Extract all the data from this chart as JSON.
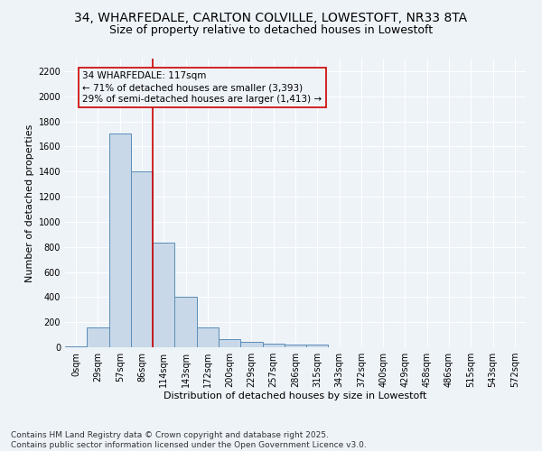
{
  "title_line1": "34, WHARFEDALE, CARLTON COLVILLE, LOWESTOFT, NR33 8TA",
  "title_line2": "Size of property relative to detached houses in Lowestoft",
  "xlabel": "Distribution of detached houses by size in Lowestoft",
  "ylabel": "Number of detached properties",
  "bar_color": "#c8d8e8",
  "bar_edge_color": "#5b8db8",
  "categories": [
    "0sqm",
    "29sqm",
    "57sqm",
    "86sqm",
    "114sqm",
    "143sqm",
    "172sqm",
    "200sqm",
    "229sqm",
    "257sqm",
    "286sqm",
    "315sqm",
    "343sqm",
    "372sqm",
    "400sqm",
    "429sqm",
    "458sqm",
    "486sqm",
    "515sqm",
    "543sqm",
    "572sqm"
  ],
  "values": [
    10,
    155,
    1700,
    1400,
    835,
    400,
    160,
    65,
    40,
    30,
    25,
    25,
    0,
    0,
    0,
    0,
    0,
    0,
    0,
    0,
    0
  ],
  "ylim": [
    0,
    2300
  ],
  "yticks": [
    0,
    200,
    400,
    600,
    800,
    1000,
    1200,
    1400,
    1600,
    1800,
    2000,
    2200
  ],
  "vline_color": "#cc0000",
  "vline_x_index": 3.5,
  "annotation_text": "34 WHARFEDALE: 117sqm\n← 71% of detached houses are smaller (3,393)\n29% of semi-detached houses are larger (1,413) →",
  "annotation_box_color": "#cc0000",
  "footer_line1": "Contains HM Land Registry data © Crown copyright and database right 2025.",
  "footer_line2": "Contains public sector information licensed under the Open Government Licence v3.0.",
  "background_color": "#eef3f8",
  "grid_color": "#ffffff",
  "title_fontsize": 10,
  "subtitle_fontsize": 9,
  "axis_label_fontsize": 8,
  "tick_fontsize": 7,
  "footer_fontsize": 6.5,
  "annotation_fontsize": 7.5
}
